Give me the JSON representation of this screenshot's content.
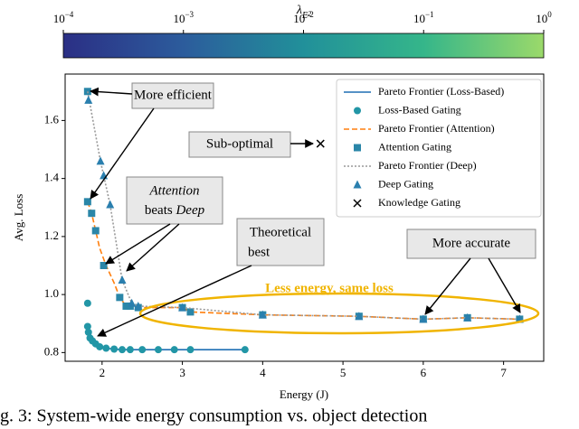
{
  "chart_data": [
    {
      "type": "colorbar",
      "label": {
        "symbol": "λ",
        "sub": "E",
        "subsub": "2"
      },
      "lim": [
        0.0001,
        1
      ],
      "log": true,
      "ticks": [
        {
          "value": 0.0001,
          "label": "10",
          "exponent": "−4"
        },
        {
          "value": 0.001,
          "label": "10",
          "exponent": "−3"
        },
        {
          "value": 0.01,
          "label": "10",
          "exponent": "−2"
        },
        {
          "value": 0.1,
          "label": "10",
          "exponent": "−1"
        },
        {
          "value": 1,
          "label": "10",
          "exponent": "0"
        }
      ],
      "colors": [
        "#2b2f85",
        "#2c5c9c",
        "#21909a",
        "#35b68a",
        "#9bd96a"
      ]
    },
    {
      "type": "scatter",
      "xlabel": "Energy (J)",
      "ylabel": "Avg. Loss",
      "xlim": [
        1.54,
        7.5
      ],
      "ylim": [
        0.77,
        1.76
      ],
      "xticks": [
        2,
        3,
        4,
        5,
        6,
        7
      ],
      "yticks": [
        0.8,
        {
          "value": 1,
          "label": "1.0"
        },
        1.2,
        1.4,
        1.6
      ],
      "grid": false,
      "legend": "upper right",
      "series": [
        {
          "name": "Pareto Frontier (Loss-Based)",
          "color": "#1f6fb4",
          "style": "solid",
          "x": [
            1.82,
            1.83,
            1.85,
            1.88,
            1.92,
            1.97,
            2.05,
            2.15,
            2.25,
            2.35,
            2.5,
            2.7,
            2.9,
            3.1,
            3.78
          ],
          "values": [
            0.89,
            0.87,
            0.85,
            0.84,
            0.83,
            0.82,
            0.815,
            0.812,
            0.81,
            0.81,
            0.81,
            0.81,
            0.81,
            0.81,
            0.81
          ]
        },
        {
          "name": "Loss-Based Gating",
          "color": "#2296a6",
          "marker": "circle",
          "x": [
            1.82,
            1.82,
            1.83,
            1.85,
            1.88,
            1.92,
            1.97,
            2.05,
            2.15,
            2.25,
            2.35,
            2.5,
            2.7,
            2.9,
            3.1,
            3.78
          ],
          "values": [
            0.97,
            0.89,
            0.87,
            0.85,
            0.84,
            0.83,
            0.82,
            0.815,
            0.812,
            0.81,
            0.81,
            0.81,
            0.81,
            0.81,
            0.81,
            0.81
          ]
        },
        {
          "name": "Pareto Frontier (Attention)",
          "color": "#ff7f0e",
          "style": "dashed",
          "x": [
            1.82,
            1.87,
            1.92,
            1.97,
            2.05,
            2.15,
            2.22,
            2.3,
            2.45,
            3.0,
            3.1,
            4.0,
            5.2,
            6.0,
            6.55,
            7.2
          ],
          "values": [
            1.32,
            1.28,
            1.22,
            1.16,
            1.1,
            1.04,
            0.99,
            0.96,
            0.955,
            0.955,
            0.94,
            0.93,
            0.925,
            0.915,
            0.92,
            0.915
          ]
        },
        {
          "name": "Attention Gating",
          "color": "#2a86a8",
          "marker": "square",
          "x": [
            1.82,
            1.82,
            1.87,
            1.92,
            2.02,
            2.22,
            2.3,
            2.35,
            2.45,
            3.0,
            3.1,
            4.0,
            5.2,
            6.0,
            6.55,
            7.2
          ],
          "values": [
            1.7,
            1.32,
            1.28,
            1.22,
            1.1,
            0.99,
            0.96,
            0.96,
            0.955,
            0.955,
            0.94,
            0.93,
            0.925,
            0.915,
            0.92,
            0.915
          ]
        },
        {
          "name": "Pareto Frontier (Deep)",
          "color": "#999999",
          "style": "dotted",
          "x": [
            1.82,
            1.98,
            2.1,
            2.25,
            2.37,
            2.45,
            3.0,
            4.0,
            5.2,
            6.0,
            6.55,
            7.2
          ],
          "values": [
            1.7,
            1.46,
            1.31,
            1.05,
            0.97,
            0.96,
            0.955,
            0.93,
            0.925,
            0.915,
            0.92,
            0.915
          ]
        },
        {
          "name": "Deep Gating",
          "color": "#2a7fae",
          "marker": "triangle",
          "x": [
            1.83,
            1.98,
            2.02,
            2.1,
            2.25,
            2.37,
            2.45,
            3.0,
            4.0,
            5.2,
            6.0,
            6.55,
            7.2
          ],
          "values": [
            1.67,
            1.46,
            1.41,
            1.31,
            1.05,
            0.97,
            0.96,
            0.955,
            0.93,
            0.925,
            0.915,
            0.92,
            0.915
          ]
        },
        {
          "name": "Knowledge Gating",
          "color": "#000000",
          "marker": "x",
          "x": [
            4.72
          ],
          "values": [
            1.52
          ]
        }
      ],
      "annotations": [
        {
          "lines": [
            "More efficient"
          ]
        },
        {
          "lines": [
            "Sub-optimal"
          ]
        },
        {
          "lines": [
            "Attention",
            "beats",
            "Deep"
          ]
        },
        {
          "lines": [
            "Theoretical",
            "best"
          ]
        },
        {
          "lines": [
            "More accurate"
          ]
        }
      ],
      "highlight_text": "Less energy, same loss",
      "highlight_color": "#f0b400",
      "caption": "g. 3: System-wide energy consumption vs. object detection"
    }
  ]
}
